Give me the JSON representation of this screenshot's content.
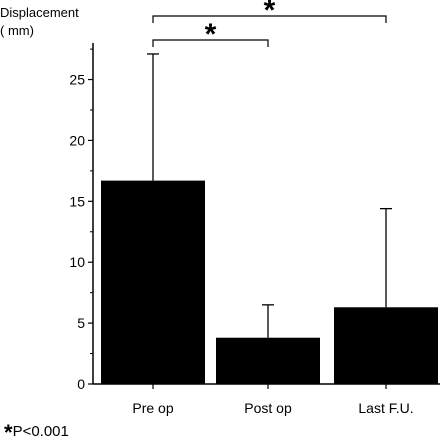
{
  "chart_data": {
    "type": "bar",
    "categories": [
      "Pre op",
      "Post op",
      "Last F.U."
    ],
    "values": [
      16.7,
      3.8,
      6.3
    ],
    "error_upper": [
      27.1,
      6.5,
      14.4
    ],
    "ylabel_line1": "Displacement",
    "ylabel_line2": "( mm)",
    "ylim": [
      0,
      28
    ],
    "yticks": [
      0,
      5,
      10,
      15,
      20,
      25
    ],
    "bar_color": "#000000",
    "significance": [
      {
        "from": "Pre op",
        "to": "Post op",
        "label": "*"
      },
      {
        "from": "Pre op",
        "to": "Last F.U.",
        "label": "*"
      }
    ]
  },
  "footnote": {
    "star": "*",
    "text": "P<0.001"
  }
}
